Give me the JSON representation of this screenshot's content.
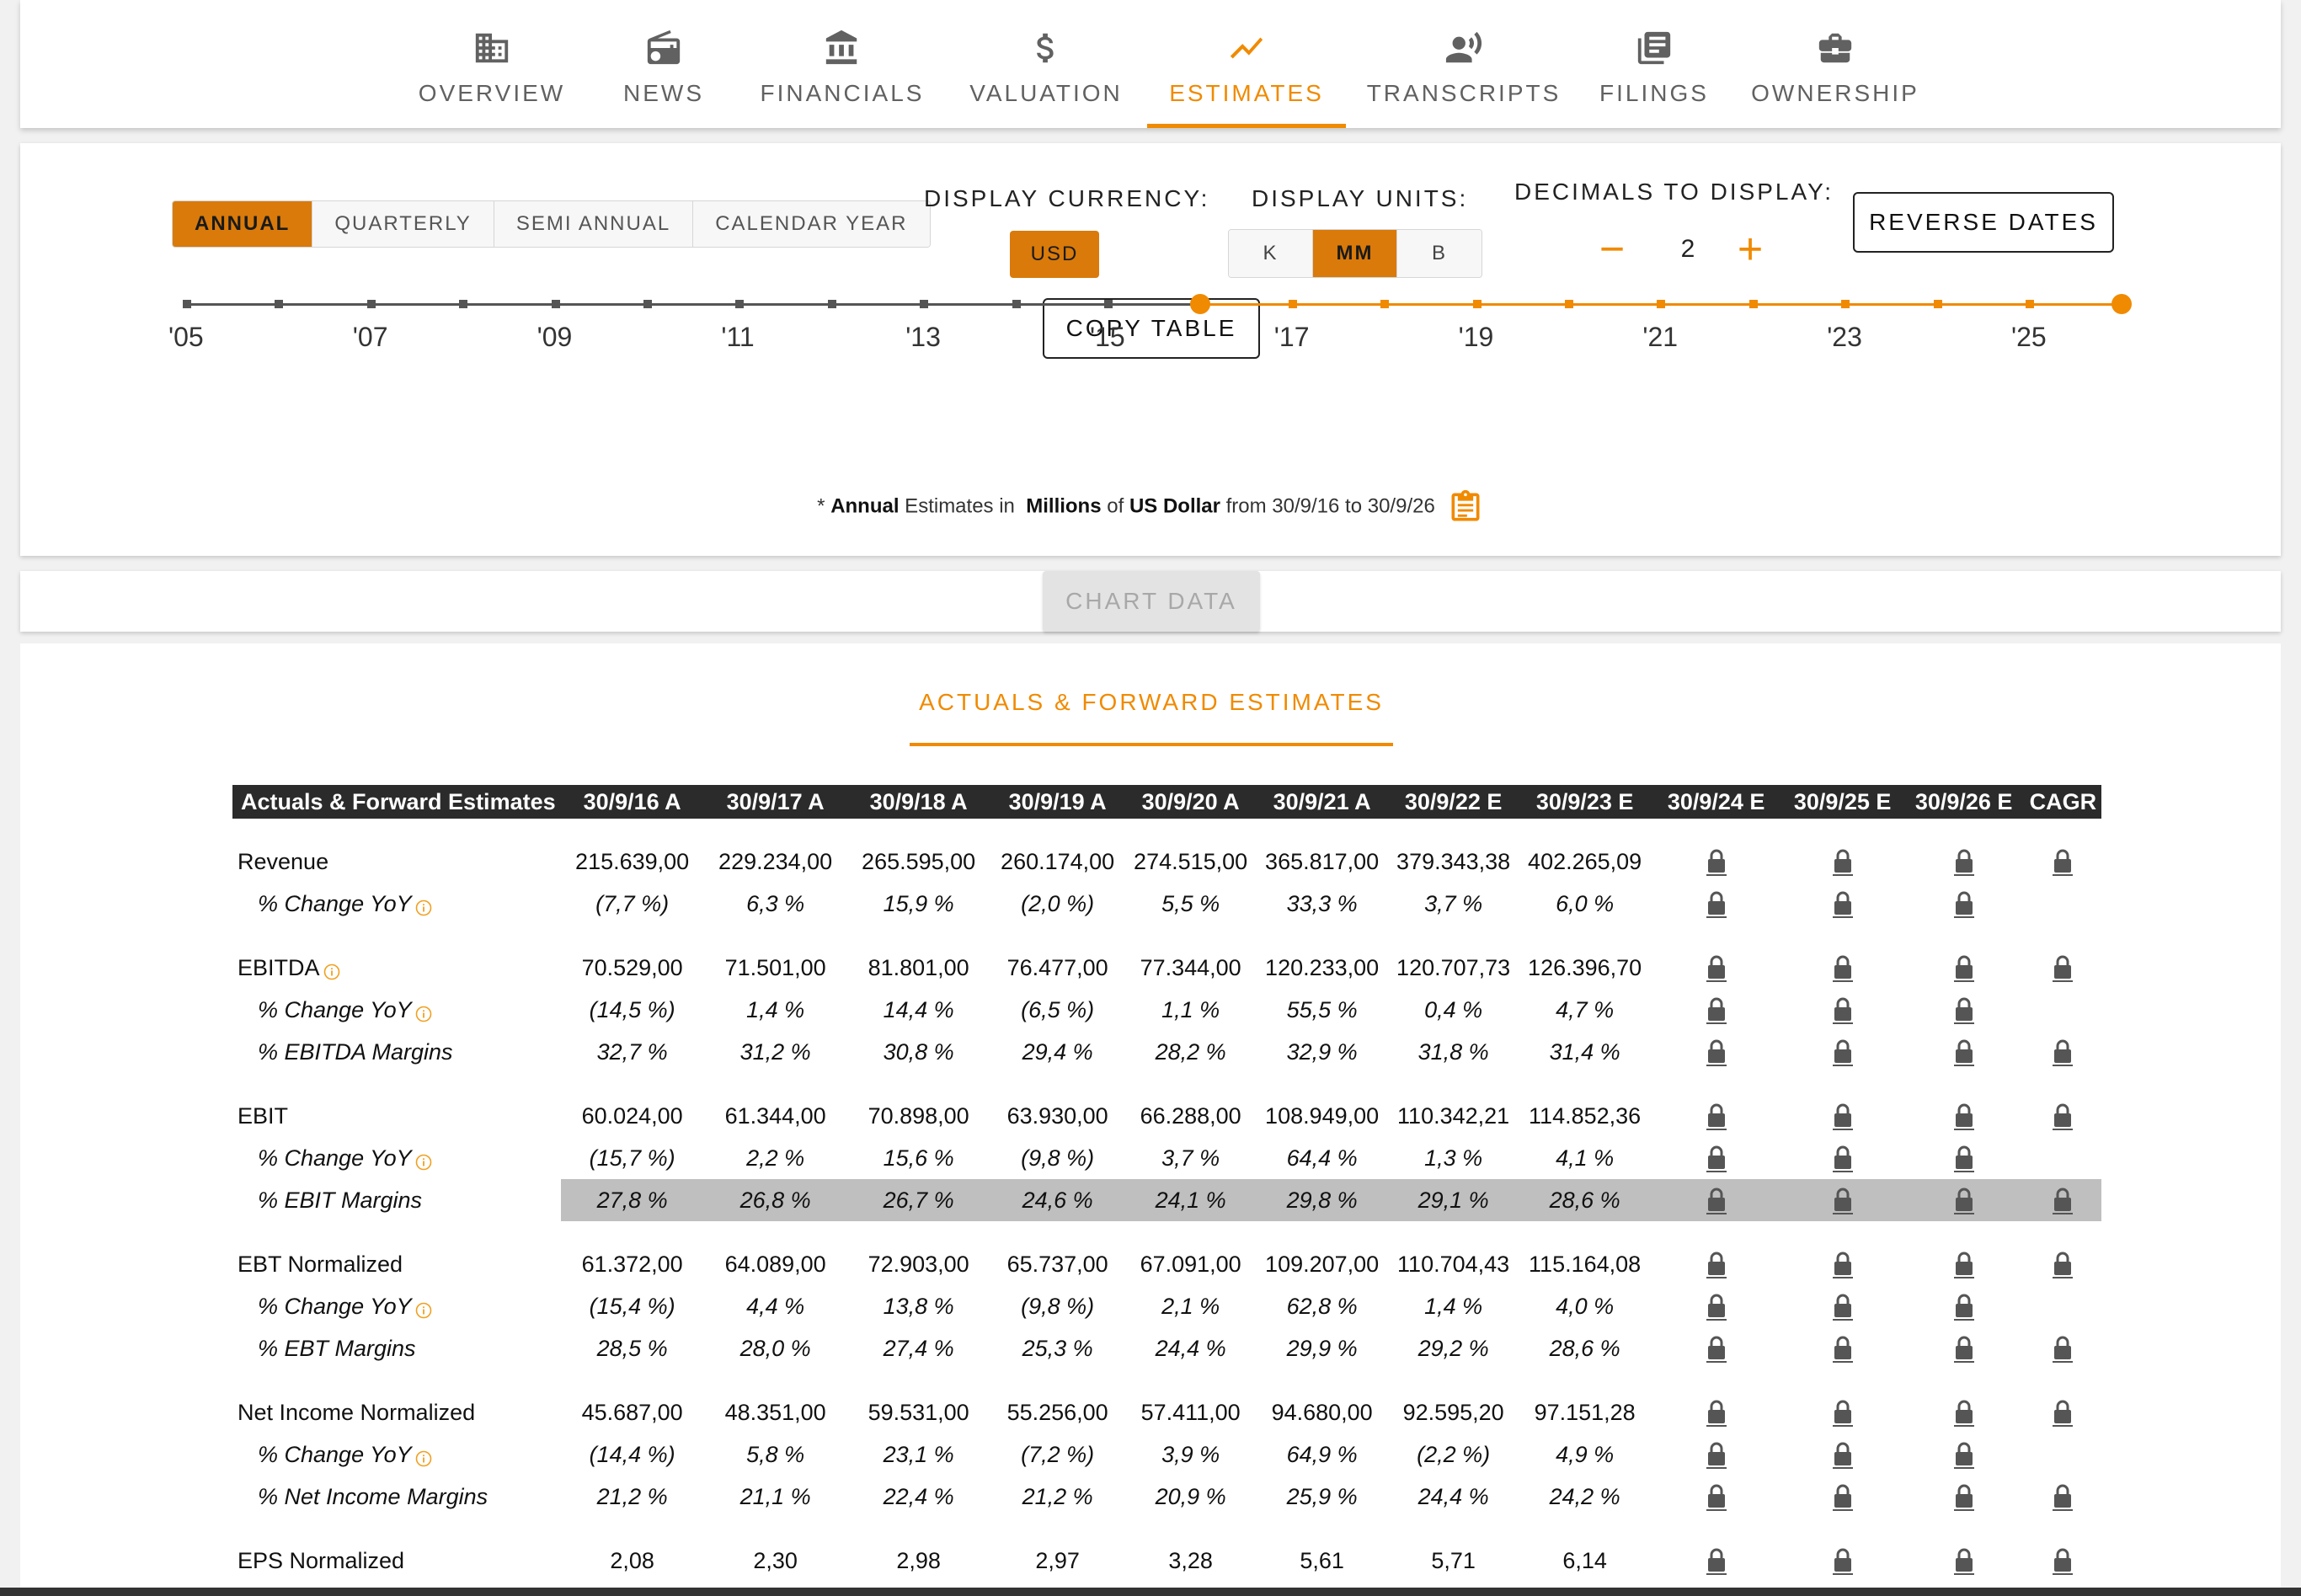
{
  "nav": {
    "tabs": [
      {
        "label": "OVERVIEW",
        "icon": "building-icon",
        "active": false
      },
      {
        "label": "NEWS",
        "icon": "radio-icon",
        "active": false
      },
      {
        "label": "FINANCIALS",
        "icon": "bank-icon",
        "active": false
      },
      {
        "label": "VALUATION",
        "icon": "dollar-icon",
        "active": false
      },
      {
        "label": "ESTIMATES",
        "icon": "trending-icon",
        "active": true
      },
      {
        "label": "TRANSCRIPTS",
        "icon": "speaker-icon",
        "active": false
      },
      {
        "label": "FILINGS",
        "icon": "document-stack-icon",
        "active": false
      },
      {
        "label": "OWNERSHIP",
        "icon": "briefcase-icon",
        "active": false
      }
    ]
  },
  "controls": {
    "period_options": [
      "ANNUAL",
      "QUARTERLY",
      "SEMI ANNUAL",
      "CALENDAR YEAR"
    ],
    "period_selected": "ANNUAL",
    "currency_label": "DISPLAY CURRENCY:",
    "currency_value": "USD",
    "units_label": "DISPLAY UNITS:",
    "units_options": [
      "K",
      "MM",
      "B"
    ],
    "units_selected": "MM",
    "decimals_label": "DECIMALS TO DISPLAY:",
    "decimals_value": "2",
    "decimals_minus": "−",
    "decimals_plus": "+",
    "reverse_dates_label": "REVERSE DATES",
    "copy_table_label": "COPY TABLE"
  },
  "timeline": {
    "labels": [
      "'05",
      "'07",
      "'09",
      "'11",
      "'13",
      "'15",
      "'17",
      "'19",
      "'21",
      "'23",
      "'25"
    ],
    "range_start": "'16",
    "range_end": "'26",
    "active_color": "#f08a00",
    "inactive_color": "#555555"
  },
  "footnote": {
    "prefix": "* ",
    "period": "Annual",
    "mid1": " Estimates in  ",
    "units": "Millions",
    "mid2": " of ",
    "currency": "US Dollar",
    "suffix": " from 30/9/16 to 30/9/26"
  },
  "chart_data_button": "CHART DATA",
  "section_title": "ACTUALS & FORWARD ESTIMATES",
  "table": {
    "header_label": "Actuals & Forward Estimates",
    "columns": [
      "30/9/16 A",
      "30/9/17 A",
      "30/9/18 A",
      "30/9/19 A",
      "30/9/20 A",
      "30/9/21 A",
      "30/9/22 E",
      "30/9/23 E",
      "30/9/24 E",
      "30/9/25 E",
      "30/9/26 E",
      "CAGR"
    ],
    "groups": [
      {
        "rows": [
          {
            "label": "Revenue",
            "sub": false,
            "info": false,
            "values": [
              "215.639,00",
              "229.234,00",
              "265.595,00",
              "260.174,00",
              "274.515,00",
              "365.817,00",
              "379.343,38",
              "402.265,09"
            ],
            "locks": [
              true,
              true,
              true,
              true
            ]
          },
          {
            "label": "% Change YoY",
            "sub": true,
            "info": true,
            "values": [
              "(7,7 %)",
              "6,3 %",
              "15,9 %",
              "(2,0 %)",
              "5,5 %",
              "33,3 %",
              "3,7 %",
              "6,0 %"
            ],
            "locks": [
              true,
              true,
              true,
              false
            ]
          }
        ]
      },
      {
        "rows": [
          {
            "label": "EBITDA",
            "sub": false,
            "info": true,
            "values": [
              "70.529,00",
              "71.501,00",
              "81.801,00",
              "76.477,00",
              "77.344,00",
              "120.233,00",
              "120.707,73",
              "126.396,70"
            ],
            "locks": [
              true,
              true,
              true,
              true
            ]
          },
          {
            "label": "% Change YoY",
            "sub": true,
            "info": true,
            "values": [
              "(14,5 %)",
              "1,4 %",
              "14,4 %",
              "(6,5 %)",
              "1,1 %",
              "55,5 %",
              "0,4 %",
              "4,7 %"
            ],
            "locks": [
              true,
              true,
              true,
              false
            ]
          },
          {
            "label": "% EBITDA Margins",
            "sub": true,
            "info": false,
            "values": [
              "32,7 %",
              "31,2 %",
              "30,8 %",
              "29,4 %",
              "28,2 %",
              "32,9 %",
              "31,8 %",
              "31,4 %"
            ],
            "locks": [
              true,
              true,
              true,
              true
            ]
          }
        ]
      },
      {
        "rows": [
          {
            "label": "EBIT",
            "sub": false,
            "info": false,
            "values": [
              "60.024,00",
              "61.344,00",
              "70.898,00",
              "63.930,00",
              "66.288,00",
              "108.949,00",
              "110.342,21",
              "114.852,36"
            ],
            "locks": [
              true,
              true,
              true,
              true
            ]
          },
          {
            "label": "% Change YoY",
            "sub": true,
            "info": true,
            "values": [
              "(15,7 %)",
              "2,2 %",
              "15,6 %",
              "(9,8 %)",
              "3,7 %",
              "64,4 %",
              "1,3 %",
              "4,1 %"
            ],
            "locks": [
              true,
              true,
              true,
              false
            ]
          },
          {
            "label": "% EBIT Margins",
            "sub": true,
            "info": false,
            "highlight": true,
            "values": [
              "27,8 %",
              "26,8 %",
              "26,7 %",
              "24,6 %",
              "24,1 %",
              "29,8 %",
              "29,1 %",
              "28,6 %"
            ],
            "locks": [
              true,
              true,
              true,
              true
            ]
          }
        ]
      },
      {
        "rows": [
          {
            "label": "EBT Normalized",
            "sub": false,
            "info": false,
            "values": [
              "61.372,00",
              "64.089,00",
              "72.903,00",
              "65.737,00",
              "67.091,00",
              "109.207,00",
              "110.704,43",
              "115.164,08"
            ],
            "locks": [
              true,
              true,
              true,
              true
            ]
          },
          {
            "label": "% Change YoY",
            "sub": true,
            "info": true,
            "values": [
              "(15,4 %)",
              "4,4 %",
              "13,8 %",
              "(9,8 %)",
              "2,1 %",
              "62,8 %",
              "1,4 %",
              "4,0 %"
            ],
            "locks": [
              true,
              true,
              true,
              false
            ]
          },
          {
            "label": "% EBT Margins",
            "sub": true,
            "info": false,
            "values": [
              "28,5 %",
              "28,0 %",
              "27,4 %",
              "25,3 %",
              "24,4 %",
              "29,9 %",
              "29,2 %",
              "28,6 %"
            ],
            "locks": [
              true,
              true,
              true,
              true
            ]
          }
        ]
      },
      {
        "rows": [
          {
            "label": "Net Income Normalized",
            "sub": false,
            "info": false,
            "values": [
              "45.687,00",
              "48.351,00",
              "59.531,00",
              "55.256,00",
              "57.411,00",
              "94.680,00",
              "92.595,20",
              "97.151,28"
            ],
            "locks": [
              true,
              true,
              true,
              true
            ]
          },
          {
            "label": "% Change YoY",
            "sub": true,
            "info": true,
            "values": [
              "(14,4 %)",
              "5,8 %",
              "23,1 %",
              "(7,2 %)",
              "3,9 %",
              "64,9 %",
              "(2,2 %)",
              "4,9 %"
            ],
            "locks": [
              true,
              true,
              true,
              false
            ]
          },
          {
            "label": "% Net Income Margins",
            "sub": true,
            "info": false,
            "values": [
              "21,2 %",
              "21,1 %",
              "22,4 %",
              "21,2 %",
              "20,9 %",
              "25,9 %",
              "24,4 %",
              "24,2 %"
            ],
            "locks": [
              true,
              true,
              true,
              true
            ]
          }
        ]
      },
      {
        "rows": [
          {
            "label": "EPS Normalized",
            "sub": false,
            "info": false,
            "values": [
              "2,08",
              "2,30",
              "2,98",
              "2,97",
              "3,28",
              "5,61",
              "5,71",
              "6,14"
            ],
            "locks": [
              true,
              true,
              true,
              true
            ]
          }
        ]
      }
    ]
  },
  "colors": {
    "accent": "#f08a00",
    "button_active": "#d97a0a",
    "negative": "#e03c3c",
    "header_bg": "#2b2b2b"
  }
}
